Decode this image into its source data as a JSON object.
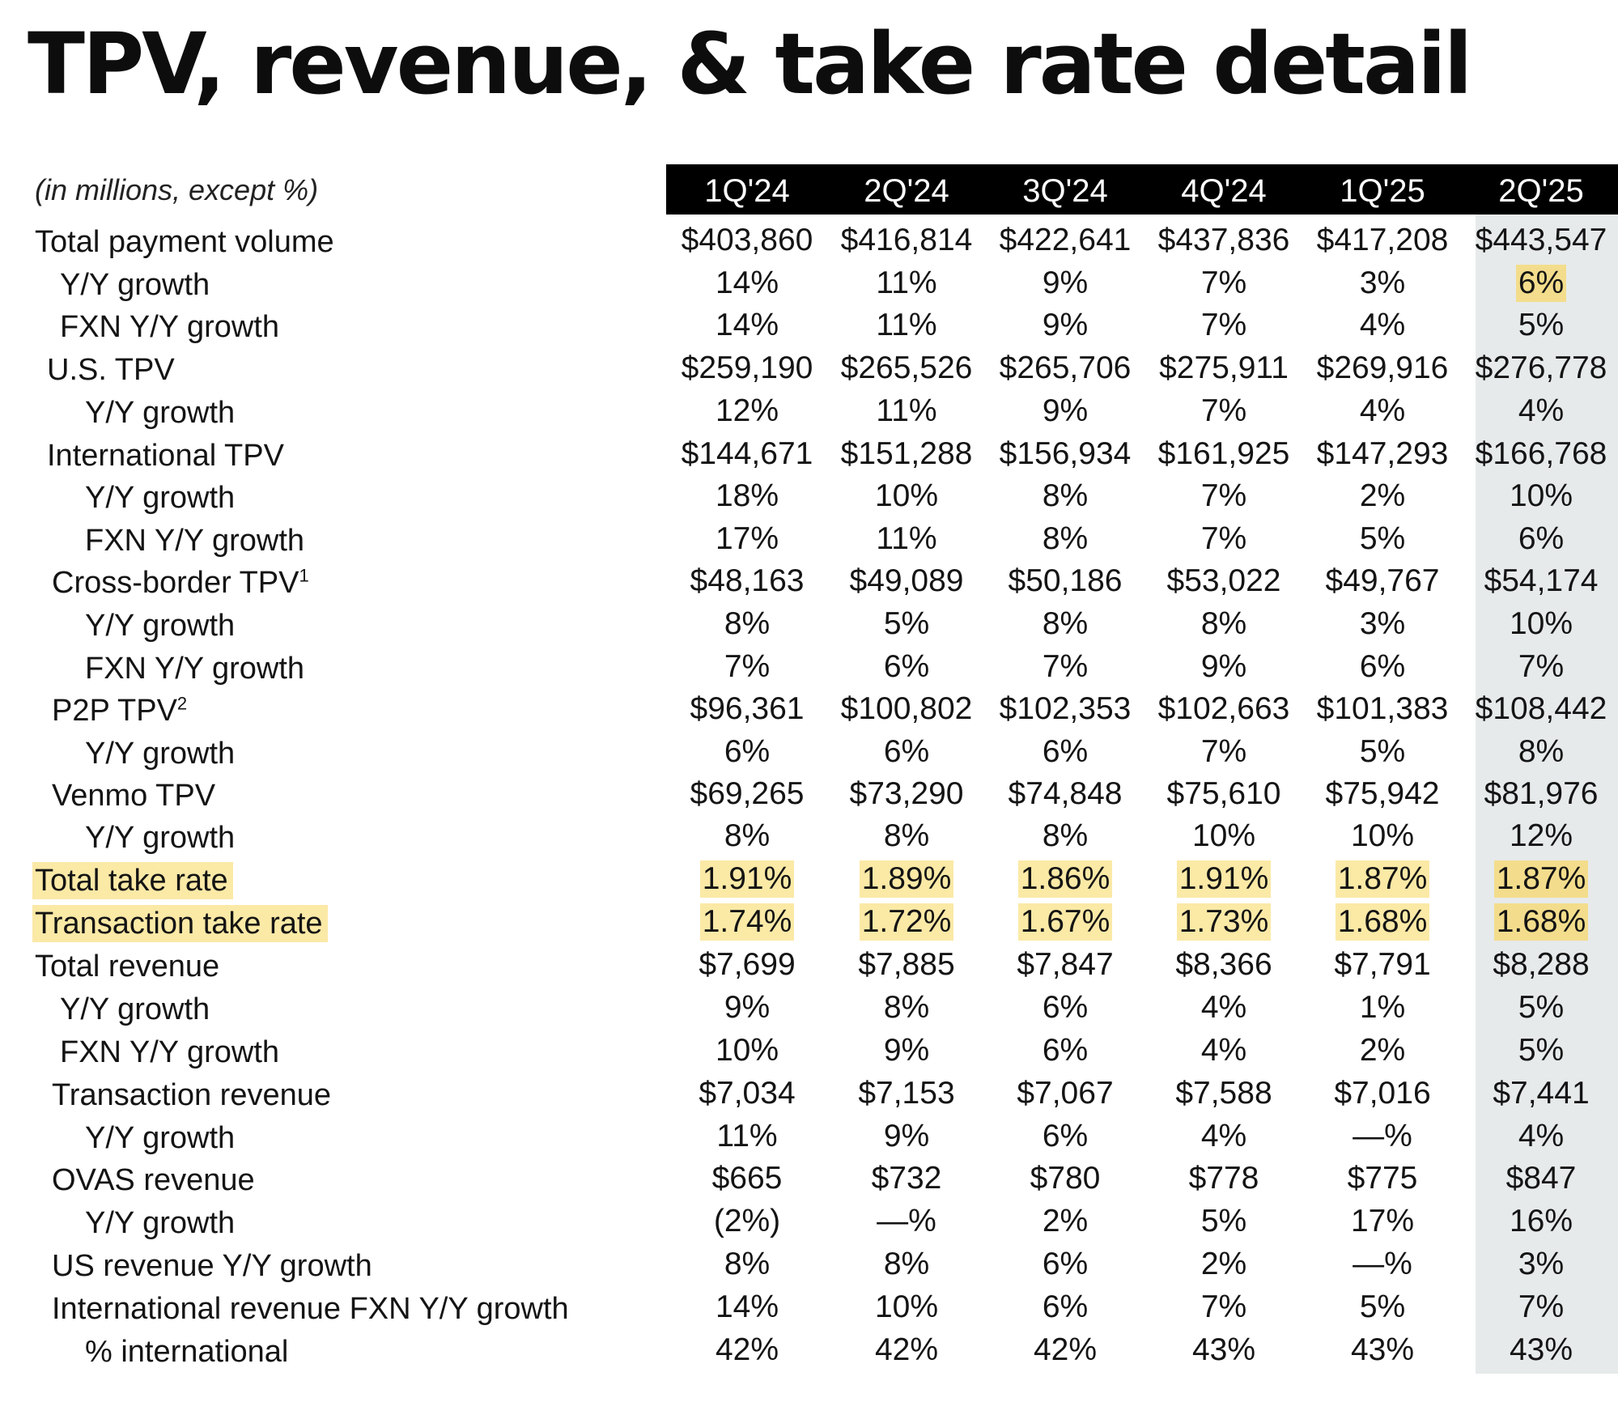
{
  "title": "TPV, revenue, & take rate detail",
  "units_note": "(in millions, except %)",
  "colors": {
    "header_bg": "#000000",
    "highlight": "#fbe9a6",
    "highlight_last_column": "#f3dd8c",
    "shaded_column": "#e7eaea"
  },
  "columns": [
    "1Q'24",
    "2Q'24",
    "3Q'24",
    "4Q'24",
    "1Q'25",
    "2Q'25"
  ],
  "rows": [
    {
      "label": "Total payment volume",
      "values": [
        "$403,860",
        "$416,814",
        "$422,641",
        "$437,836",
        "$417,208",
        "$443,547"
      ],
      "highlight_label": false,
      "highlight_cells": []
    },
    {
      "label": "Y/Y growth",
      "values": [
        "14%",
        "11%",
        "9%",
        "7%",
        "3%",
        "6%"
      ],
      "highlight_label": false,
      "highlight_cells": [
        5
      ]
    },
    {
      "label": "FXN Y/Y growth",
      "values": [
        "14%",
        "11%",
        "9%",
        "7%",
        "4%",
        "5%"
      ],
      "highlight_label": false,
      "highlight_cells": []
    },
    {
      "label": "U.S. TPV",
      "values": [
        "$259,190",
        "$265,526",
        "$265,706",
        "$275,911",
        "$269,916",
        "$276,778"
      ],
      "highlight_label": false,
      "highlight_cells": []
    },
    {
      "label": "Y/Y growth",
      "values": [
        "12%",
        "11%",
        "9%",
        "7%",
        "4%",
        "4%"
      ],
      "highlight_label": false,
      "highlight_cells": []
    },
    {
      "label": "International TPV",
      "values": [
        "$144,671",
        "$151,288",
        "$156,934",
        "$161,925",
        "$147,293",
        "$166,768"
      ],
      "highlight_label": false,
      "highlight_cells": []
    },
    {
      "label": "Y/Y growth",
      "values": [
        "18%",
        "10%",
        "8%",
        "7%",
        "2%",
        "10%"
      ],
      "highlight_label": false,
      "highlight_cells": []
    },
    {
      "label": "FXN Y/Y growth",
      "values": [
        "17%",
        "11%",
        "8%",
        "7%",
        "5%",
        "6%"
      ],
      "highlight_label": false,
      "highlight_cells": []
    },
    {
      "label": "Cross-border TPV",
      "footnote": "1",
      "values": [
        "$48,163",
        "$49,089",
        "$50,186",
        "$53,022",
        "$49,767",
        "$54,174"
      ],
      "highlight_label": false,
      "highlight_cells": []
    },
    {
      "label": "Y/Y growth",
      "values": [
        "8%",
        "5%",
        "8%",
        "8%",
        "3%",
        "10%"
      ],
      "highlight_label": false,
      "highlight_cells": []
    },
    {
      "label": "FXN Y/Y growth",
      "values": [
        "7%",
        "6%",
        "7%",
        "9%",
        "6%",
        "7%"
      ],
      "highlight_label": false,
      "highlight_cells": []
    },
    {
      "label": "P2P TPV",
      "footnote": "2",
      "values": [
        "$96,361",
        "$100,802",
        "$102,353",
        "$102,663",
        "$101,383",
        "$108,442"
      ],
      "highlight_label": false,
      "highlight_cells": []
    },
    {
      "label": "Y/Y growth",
      "values": [
        "6%",
        "6%",
        "6%",
        "7%",
        "5%",
        "8%"
      ],
      "highlight_label": false,
      "highlight_cells": []
    },
    {
      "label": "Venmo TPV",
      "values": [
        "$69,265",
        "$73,290",
        "$74,848",
        "$75,610",
        "$75,942",
        "$81,976"
      ],
      "highlight_label": false,
      "highlight_cells": []
    },
    {
      "label": "Y/Y growth",
      "values": [
        "8%",
        "8%",
        "8%",
        "10%",
        "10%",
        "12%"
      ],
      "highlight_label": false,
      "highlight_cells": []
    },
    {
      "label": "Total take rate",
      "values": [
        "1.91%",
        "1.89%",
        "1.86%",
        "1.91%",
        "1.87%",
        "1.87%"
      ],
      "highlight_label": true,
      "highlight_cells": [
        0,
        1,
        2,
        3,
        4,
        5
      ]
    },
    {
      "label": "Transaction take rate",
      "values": [
        "1.74%",
        "1.72%",
        "1.67%",
        "1.73%",
        "1.68%",
        "1.68%"
      ],
      "highlight_label": true,
      "highlight_cells": [
        0,
        1,
        2,
        3,
        4,
        5
      ]
    },
    {
      "label": "Total revenue",
      "values": [
        "$7,699",
        "$7,885",
        "$7,847",
        "$8,366",
        "$7,791",
        "$8,288"
      ],
      "highlight_label": false,
      "highlight_cells": []
    },
    {
      "label": "Y/Y growth",
      "values": [
        "9%",
        "8%",
        "6%",
        "4%",
        "1%",
        "5%"
      ],
      "highlight_label": false,
      "highlight_cells": []
    },
    {
      "label": "FXN Y/Y growth",
      "values": [
        "10%",
        "9%",
        "6%",
        "4%",
        "2%",
        "5%"
      ],
      "highlight_label": false,
      "highlight_cells": []
    },
    {
      "label": "Transaction revenue",
      "values": [
        "$7,034",
        "$7,153",
        "$7,067",
        "$7,588",
        "$7,016",
        "$7,441"
      ],
      "highlight_label": false,
      "highlight_cells": []
    },
    {
      "label": "Y/Y growth",
      "values": [
        "11%",
        "9%",
        "6%",
        "4%",
        "—%",
        "4%"
      ],
      "highlight_label": false,
      "highlight_cells": []
    },
    {
      "label": "OVAS revenue",
      "values": [
        "$665",
        "$732",
        "$780",
        "$778",
        "$775",
        "$847"
      ],
      "highlight_label": false,
      "highlight_cells": []
    },
    {
      "label": "Y/Y growth",
      "values": [
        "(2%)",
        "—%",
        "2%",
        "5%",
        "17%",
        "16%"
      ],
      "highlight_label": false,
      "highlight_cells": []
    },
    {
      "label": "US revenue Y/Y growth",
      "values": [
        "8%",
        "8%",
        "6%",
        "2%",
        "—%",
        "3%"
      ],
      "highlight_label": false,
      "highlight_cells": []
    },
    {
      "label": "International revenue FXN Y/Y growth",
      "values": [
        "14%",
        "10%",
        "6%",
        "7%",
        "5%",
        "7%"
      ],
      "highlight_label": false,
      "highlight_cells": []
    },
    {
      "label": "% international",
      "values": [
        "42%",
        "42%",
        "42%",
        "43%",
        "43%",
        "43%"
      ],
      "highlight_label": false,
      "highlight_cells": []
    }
  ]
}
